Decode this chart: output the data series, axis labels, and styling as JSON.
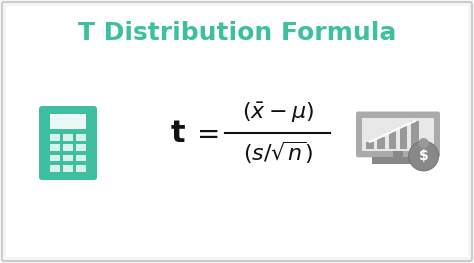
{
  "title": "T Distribution Formula",
  "title_color": "#3dbfa0",
  "title_fontsize": 18,
  "title_fontweight": "bold",
  "bg_color": "#f5f5f5",
  "border_color": "#bbbbbb",
  "formula_color": "#111111",
  "formula_fontsize": 16,
  "calc_icon_color": "#3dbfa0",
  "monitor_color": "#888888",
  "monitor_dark": "#555555",
  "bar_color": "#888888",
  "figsize": [
    4.74,
    2.63
  ],
  "dpi": 100
}
